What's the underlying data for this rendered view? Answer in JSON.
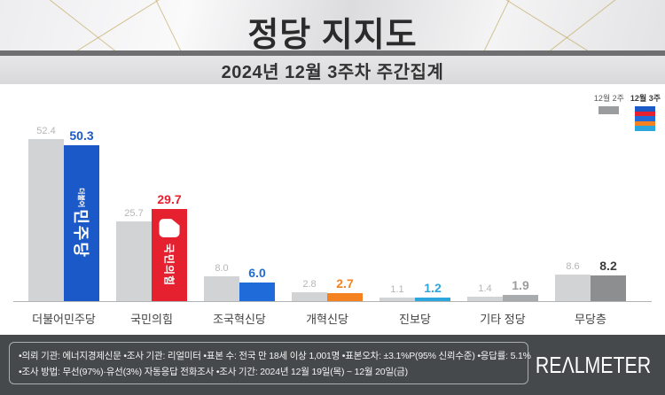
{
  "header": {
    "title": "정당 지지도"
  },
  "subtitle": "2024년 12월 3주차 주간집계",
  "legend": {
    "prev_label": "12월 2주",
    "curr_label": "12월 3주",
    "prev_color": "#9b9c9e",
    "curr_stripes": [
      "#1b59c8",
      "#e5202f",
      "#1e6bd9",
      "#f58220",
      "#2ca6dd"
    ]
  },
  "chart_data": {
    "type": "bar",
    "title": "정당 지지도",
    "subtitle": "2024년 12월 3주차 주간집계",
    "categories": [
      "더불어민주당",
      "국민의힘",
      "조국혁신당",
      "개혁신당",
      "진보당",
      "기타 정당",
      "무당층"
    ],
    "series": [
      {
        "name": "12월 2주",
        "values": [
          52.4,
          25.7,
          8.0,
          2.8,
          1.1,
          1.4,
          8.6
        ]
      },
      {
        "name": "12월 3주",
        "values": [
          50.3,
          29.7,
          6.0,
          2.7,
          1.2,
          1.9,
          8.2
        ]
      }
    ],
    "ylim": [
      0,
      60
    ],
    "grid": false,
    "legend_position": "top-right",
    "groups": [
      {
        "category": "더불어민주당",
        "prev_display": "52.4",
        "curr_display": "50.3",
        "bar_color": "#1b59c8",
        "value_color": "#1b59c8",
        "logo": {
          "type": "dp",
          "small": "더불어",
          "big": "민주당"
        }
      },
      {
        "category": "국민의힘",
        "prev_display": "25.7",
        "curr_display": "29.7",
        "bar_color": "#e5202f",
        "value_color": "#e5202f",
        "logo": {
          "type": "ppp",
          "big": "국민의힘"
        }
      },
      {
        "category": "조국혁신당",
        "prev_display": "8.0",
        "curr_display": "6.0",
        "bar_color": "#1e6bd9",
        "value_color": "#1e6bd9"
      },
      {
        "category": "개혁신당",
        "prev_display": "2.8",
        "curr_display": "2.7",
        "bar_color": "#f58220",
        "value_color": "#f58220"
      },
      {
        "category": "진보당",
        "prev_display": "1.1",
        "curr_display": "1.2",
        "bar_color": "#2ca6dd",
        "value_color": "#2ca6dd"
      },
      {
        "category": "기타 정당",
        "prev_display": "1.4",
        "curr_display": "1.9",
        "bar_color": "#a9aaac",
        "value_color": "#9b9c9e"
      },
      {
        "category": "무당층",
        "prev_display": "8.6",
        "curr_display": "8.2",
        "bar_color": "#8d8e90",
        "value_color": "#3c3c3e"
      }
    ]
  },
  "footer": {
    "line1": "•의뢰 기관: 에너지경제신문  •조사 기관: 리얼미터 •표본 수: 전국 만 18세 이상 1,001명 •표본오차: ±3.1%P(95% 신뢰수준) •응답률: 5.1%",
    "line2": "•조사 방법: 무선(97%)·유선(3%) 자동응답 전화조사 •조사 기간: 2024년 12월 19일(목) ~ 12월 20일(금)",
    "logo": "REΛLMETER"
  }
}
